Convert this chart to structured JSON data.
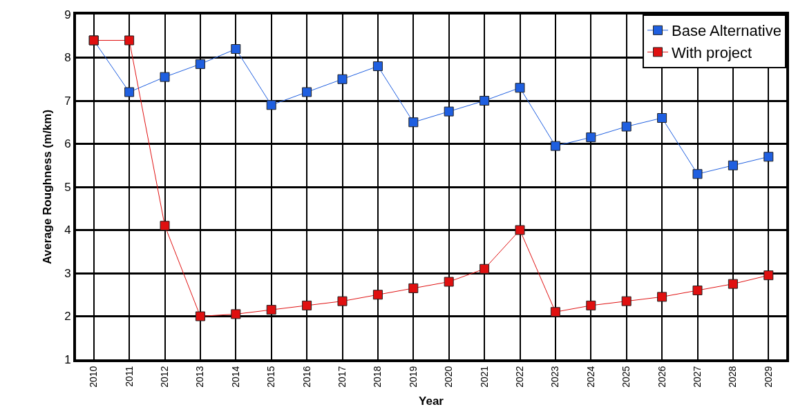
{
  "chart_data": {
    "type": "line",
    "xlabel": "Year",
    "ylabel": "Average Roughness (m/km)",
    "categories": [
      "2010",
      "2011",
      "2012",
      "2013",
      "2014",
      "2015",
      "2016",
      "2017",
      "2018",
      "2019",
      "2020",
      "2021",
      "2022",
      "2023",
      "2024",
      "2025",
      "2026",
      "2027",
      "2028",
      "2029"
    ],
    "series": [
      {
        "name": "Base Alternative",
        "color": "#1f5fe0",
        "values": [
          8.4,
          7.2,
          7.55,
          7.85,
          8.2,
          6.9,
          7.2,
          7.5,
          7.8,
          6.5,
          6.75,
          7.0,
          7.3,
          5.95,
          6.15,
          6.4,
          6.6,
          5.3,
          5.5,
          5.7
        ]
      },
      {
        "name": "With project",
        "color": "#e01010",
        "values": [
          8.4,
          8.4,
          4.1,
          2.0,
          2.05,
          2.15,
          2.25,
          2.35,
          2.5,
          2.65,
          2.8,
          3.1,
          4.0,
          2.1,
          2.25,
          2.35,
          2.45,
          2.6,
          2.75,
          2.95
        ]
      }
    ],
    "ylim": [
      1,
      9
    ],
    "yticks": [
      1,
      2,
      3,
      4,
      5,
      6,
      7,
      8,
      9
    ],
    "grid": true,
    "legend": "top right",
    "marker": "square",
    "line_style": "solid"
  }
}
